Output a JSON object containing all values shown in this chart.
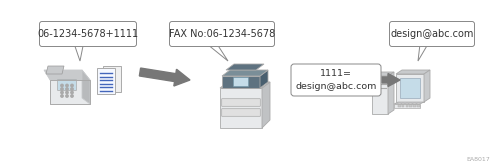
{
  "bg_color": "#ffffff",
  "callout_border": "#888888",
  "callout_bg": "#ffffff",
  "box_border": "#888888",
  "box_bg": "#ffffff",
  "text_color": "#333333",
  "arrow_color": "#777777",
  "callout1_text": "06-1234-5678+1111",
  "callout2_text": "FAX No:06-1234-5678",
  "callout3_text": "design@abc.com",
  "box_text_line1": "1111=",
  "box_text_line2": "design@abc.com",
  "watermark": "EA8017",
  "icon_gray_light": "#e8eaec",
  "icon_gray_mid": "#c8cacc",
  "icon_gray_dark": "#5e7280",
  "icon_blue_light": "#c5dce8",
  "icon_blue_mid": "#7ba8bc",
  "doc_blue": "#6688cc",
  "doc_lines": "#4466bb",
  "figsize": [
    4.92,
    1.64
  ],
  "dpi": 100
}
